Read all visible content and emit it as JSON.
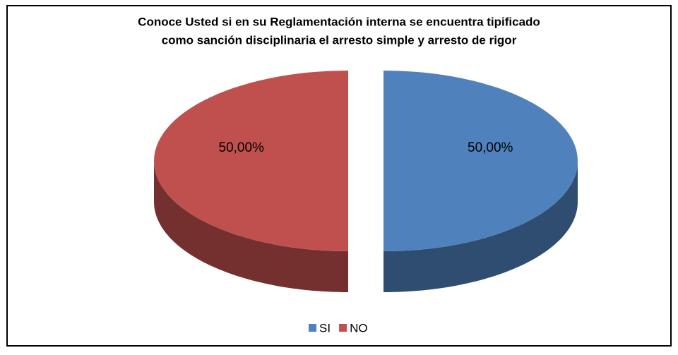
{
  "chart_data": {
    "type": "pie",
    "title": [
      "Conoce Usted si en su Reglamentación interna se encuentra tipificado",
      "como sanción disciplinaria el arresto simple y arresto de rigor"
    ],
    "categories": [
      "SI",
      "NO"
    ],
    "values": [
      50,
      50
    ],
    "value_labels": [
      "50,00%",
      "50,00%"
    ],
    "colors": [
      "#4f81bd",
      "#c0504d"
    ],
    "legend": "bottom"
  }
}
